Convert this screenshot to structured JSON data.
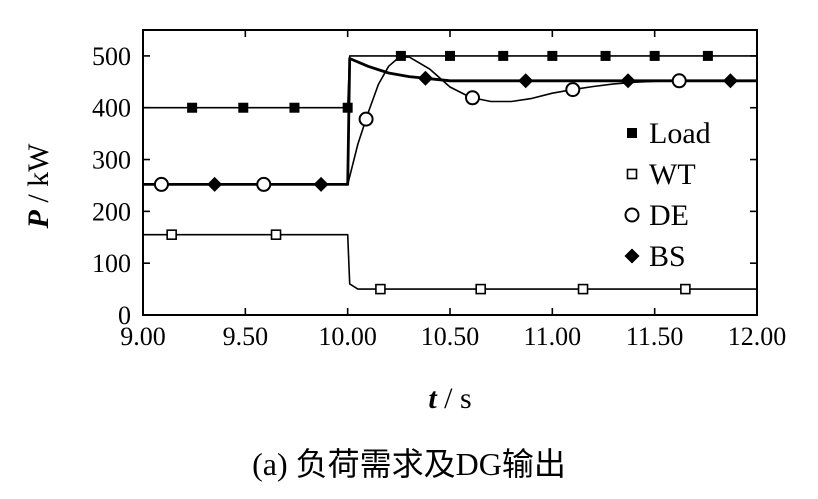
{
  "chart_data": {
    "type": "line",
    "title": "",
    "caption": "(a) 负荷需求及DG输出",
    "xlabel": {
      "var": "t",
      "unit": " / s"
    },
    "ylabel": {
      "var": "P",
      "unit": " / kW"
    },
    "xlim": [
      9.0,
      12.0
    ],
    "ylim": [
      0,
      550
    ],
    "xticks": [
      9.0,
      9.5,
      10.0,
      10.5,
      11.0,
      11.5,
      12.0
    ],
    "xtick_labels": [
      "9.00",
      "9.50",
      "10.00",
      "10.50",
      "11.00",
      "11.50",
      "12.00"
    ],
    "yticks": [
      0,
      100,
      200,
      300,
      400,
      500
    ],
    "ytick_labels": [
      "0",
      "100",
      "200",
      "300",
      "400",
      "500"
    ],
    "grid": false,
    "legend_position": "right",
    "series": [
      {
        "name": "Load",
        "marker": "filled-square",
        "x": [
          9.0,
          10.0,
          10.01,
          12.0
        ],
        "y": [
          400,
          400,
          500,
          500
        ],
        "markers_x": [
          9.24,
          9.49,
          9.74,
          10.0,
          10.26,
          10.5,
          10.76,
          11.0,
          11.26,
          11.5,
          11.76
        ]
      },
      {
        "name": "WT",
        "marker": "open-square",
        "x": [
          9.0,
          10.0,
          10.01,
          10.05,
          12.0
        ],
        "y": [
          155,
          155,
          60,
          50,
          50
        ],
        "markers_x": [
          9.14,
          9.65,
          10.16,
          10.65,
          11.15,
          11.65
        ]
      },
      {
        "name": "DE",
        "marker": "open-circle",
        "x": [
          9.0,
          10.0,
          10.05,
          10.1,
          10.15,
          10.2,
          10.25,
          10.3,
          10.4,
          10.5,
          10.6,
          10.7,
          10.8,
          10.9,
          11.0,
          11.1,
          11.2,
          11.3,
          11.4,
          11.5,
          11.6,
          11.7,
          11.8,
          12.0
        ],
        "y": [
          252,
          252,
          330,
          390,
          445,
          480,
          497,
          498,
          475,
          440,
          420,
          412,
          412,
          418,
          428,
          435,
          441,
          446,
          449,
          451,
          452,
          452,
          452,
          452
        ],
        "markers_x": [
          9.09,
          9.59,
          10.09,
          10.61,
          11.1,
          11.62
        ]
      },
      {
        "name": "BS",
        "marker": "filled-diamond",
        "x": [
          9.0,
          10.0,
          10.01,
          10.1,
          10.2,
          10.3,
          10.4,
          10.5,
          12.0
        ],
        "y": [
          252,
          252,
          495,
          480,
          467,
          460,
          456,
          452,
          452
        ],
        "markers_x": [
          9.35,
          9.87,
          10.38,
          10.87,
          11.37,
          11.87
        ]
      }
    ]
  }
}
